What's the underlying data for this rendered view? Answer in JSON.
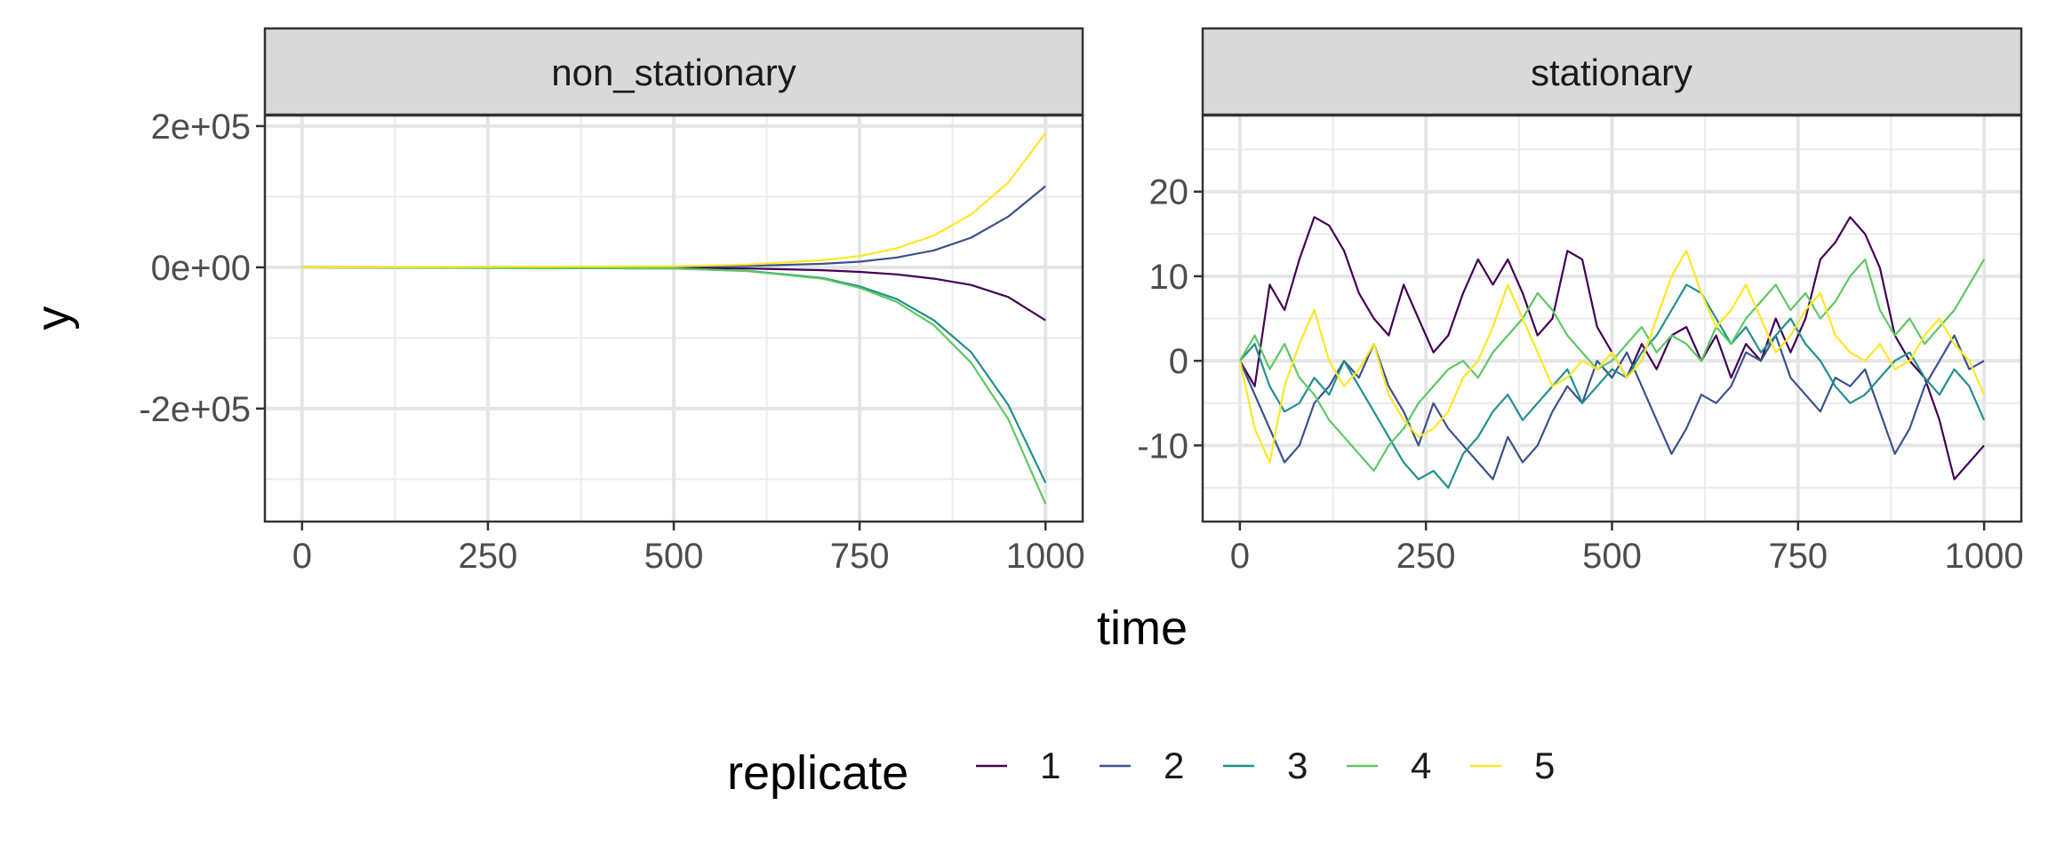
{
  "chart_data": {
    "type": "line",
    "xlabel": "time",
    "ylabel": "y",
    "legend": {
      "title": "replicate",
      "position": "bottom"
    },
    "series_meta": [
      {
        "name": "1",
        "color": "#440154"
      },
      {
        "name": "2",
        "color": "#3B528B"
      },
      {
        "name": "3",
        "color": "#21908C"
      },
      {
        "name": "4",
        "color": "#5DC863"
      },
      {
        "name": "5",
        "color": "#FDE725"
      }
    ],
    "panels": [
      {
        "title": "non_stationary",
        "xlim": [
          -50,
          1050
        ],
        "ylim": [
          -360000,
          215000
        ],
        "xticks": [
          0,
          250,
          500,
          750,
          1000
        ],
        "xtick_labels": [
          "0",
          "250",
          "500",
          "750",
          "1000"
        ],
        "yticks": [
          -200000,
          0,
          200000
        ],
        "ytick_labels": [
          "-2e+05",
          "0e+00",
          "2e+05"
        ],
        "y_minor": [
          -300000,
          -100000,
          100000
        ],
        "series": [
          {
            "name": "1",
            "x": [
              0,
              500,
              600,
              700,
              750,
              800,
              850,
              900,
              950,
              1000
            ],
            "y": [
              0,
              -500,
              -1500,
              -4000,
              -6500,
              -10000,
              -16000,
              -25000,
              -42000,
              -75000
            ]
          },
          {
            "name": "2",
            "x": [
              0,
              500,
              600,
              700,
              750,
              800,
              850,
              900,
              950,
              1000
            ],
            "y": [
              0,
              800,
              2000,
              5000,
              8000,
              14000,
              24000,
              42000,
              72000,
              115000
            ]
          },
          {
            "name": "3",
            "x": [
              0,
              500,
              600,
              700,
              750,
              800,
              850,
              900,
              950,
              1000
            ],
            "y": [
              0,
              -1500,
              -5000,
              -15000,
              -27000,
              -45000,
              -75000,
              -120000,
              -195000,
              -305000
            ]
          },
          {
            "name": "4",
            "x": [
              0,
              500,
              600,
              700,
              750,
              800,
              850,
              900,
              950,
              1000
            ],
            "y": [
              0,
              -1500,
              -5500,
              -16000,
              -29000,
              -49000,
              -82000,
              -135000,
              -215000,
              -335000
            ]
          },
          {
            "name": "5",
            "x": [
              0,
              500,
              600,
              700,
              750,
              800,
              850,
              900,
              950,
              1000
            ],
            "y": [
              0,
              1500,
              4000,
              10000,
              16000,
              27000,
              45000,
              75000,
              120000,
              190000
            ]
          }
        ]
      },
      {
        "title": "stationary",
        "xlim": [
          -50,
          1050
        ],
        "ylim": [
          -19,
          29
        ],
        "xticks": [
          0,
          250,
          500,
          750,
          1000
        ],
        "xtick_labels": [
          "0",
          "250",
          "500",
          "750",
          "1000"
        ],
        "yticks": [
          -10,
          0,
          10,
          20
        ],
        "ytick_labels": [
          "-10",
          "0",
          "10",
          "20"
        ],
        "y_minor": [
          -15,
          -5,
          5,
          15,
          25
        ],
        "series": [
          {
            "name": "1",
            "x": [
              0,
              20,
              40,
              60,
              80,
              100,
              120,
              140,
              160,
              180,
              200,
              220,
              240,
              260,
              280,
              300,
              320,
              340,
              360,
              380,
              400,
              420,
              440,
              460,
              480,
              500,
              520,
              540,
              560,
              580,
              600,
              620,
              640,
              660,
              680,
              700,
              720,
              740,
              760,
              780,
              800,
              820,
              840,
              860,
              880,
              900,
              920,
              940,
              960,
              980,
              1000
            ],
            "y": [
              0,
              -3,
              9,
              6,
              12,
              17,
              16,
              13,
              8,
              5,
              3,
              9,
              5,
              1,
              3,
              8,
              12,
              9,
              12,
              8,
              3,
              5,
              13,
              12,
              4,
              1,
              -2,
              2,
              -1,
              3,
              4,
              0,
              3,
              -2,
              2,
              0,
              5,
              1,
              5,
              12,
              14,
              17,
              15,
              11,
              3,
              0,
              -2,
              -7,
              -14,
              -12,
              -10
            ]
          },
          {
            "name": "2",
            "x": [
              0,
              20,
              40,
              60,
              80,
              100,
              120,
              140,
              160,
              180,
              200,
              220,
              240,
              260,
              280,
              300,
              320,
              340,
              360,
              380,
              400,
              420,
              440,
              460,
              480,
              500,
              520,
              540,
              560,
              580,
              600,
              620,
              640,
              660,
              680,
              700,
              720,
              740,
              760,
              780,
              800,
              820,
              840,
              860,
              880,
              900,
              920,
              940,
              960,
              980,
              1000
            ],
            "y": [
              0,
              -4,
              -8,
              -12,
              -10,
              -5,
              -3,
              0,
              -2,
              2,
              -3,
              -6,
              -10,
              -5,
              -8,
              -10,
              -12,
              -14,
              -9,
              -12,
              -10,
              -6,
              -3,
              -5,
              0,
              -2,
              1,
              -3,
              -7,
              -11,
              -8,
              -4,
              -5,
              -3,
              1,
              0,
              3,
              -2,
              -4,
              -6,
              -2,
              -3,
              -1,
              -6,
              -11,
              -8,
              -3,
              0,
              3,
              -1,
              0
            ]
          },
          {
            "name": "3",
            "x": [
              0,
              20,
              40,
              60,
              80,
              100,
              120,
              140,
              160,
              180,
              200,
              220,
              240,
              260,
              280,
              300,
              320,
              340,
              360,
              380,
              400,
              420,
              440,
              460,
              480,
              500,
              520,
              540,
              560,
              580,
              600,
              620,
              640,
              660,
              680,
              700,
              720,
              740,
              760,
              780,
              800,
              820,
              840,
              860,
              880,
              900,
              920,
              940,
              960,
              980,
              1000
            ],
            "y": [
              0,
              2,
              -3,
              -6,
              -5,
              -2,
              -4,
              0,
              -3,
              -6,
              -9,
              -12,
              -14,
              -13,
              -15,
              -11,
              -9,
              -6,
              -4,
              -7,
              -5,
              -3,
              -1,
              -5,
              -3,
              -1,
              -2,
              1,
              3,
              6,
              9,
              8,
              5,
              2,
              4,
              1,
              3,
              5,
              2,
              0,
              -3,
              -5,
              -4,
              -2,
              0,
              1,
              -2,
              -4,
              -1,
              -3,
              -7
            ]
          },
          {
            "name": "4",
            "x": [
              0,
              20,
              40,
              60,
              80,
              100,
              120,
              140,
              160,
              180,
              200,
              220,
              240,
              260,
              280,
              300,
              320,
              340,
              360,
              380,
              400,
              420,
              440,
              460,
              480,
              500,
              520,
              540,
              560,
              580,
              600,
              620,
              640,
              660,
              680,
              700,
              720,
              740,
              760,
              780,
              800,
              820,
              840,
              860,
              880,
              900,
              920,
              940,
              960,
              980,
              1000
            ],
            "y": [
              0,
              3,
              -1,
              2,
              -2,
              -4,
              -7,
              -9,
              -11,
              -13,
              -10,
              -8,
              -5,
              -3,
              -1,
              0,
              -2,
              1,
              3,
              5,
              8,
              6,
              3,
              1,
              -1,
              0,
              2,
              4,
              1,
              3,
              2,
              0,
              4,
              2,
              5,
              7,
              9,
              6,
              8,
              5,
              7,
              10,
              12,
              6,
              3,
              5,
              2,
              4,
              6,
              9,
              12
            ]
          },
          {
            "name": "5",
            "x": [
              0,
              20,
              40,
              60,
              80,
              100,
              120,
              140,
              160,
              180,
              200,
              220,
              240,
              260,
              280,
              300,
              320,
              340,
              360,
              380,
              400,
              420,
              440,
              460,
              480,
              500,
              520,
              540,
              560,
              580,
              600,
              620,
              640,
              660,
              680,
              700,
              720,
              740,
              760,
              780,
              800,
              820,
              840,
              860,
              880,
              900,
              920,
              940,
              960,
              980,
              1000
            ],
            "y": [
              0,
              -8,
              -12,
              -3,
              2,
              6,
              0,
              -3,
              -1,
              2,
              -4,
              -7,
              -9,
              -8,
              -6,
              -2,
              0,
              4,
              9,
              5,
              1,
              -3,
              -2,
              0,
              -1,
              1,
              -2,
              0,
              5,
              10,
              13,
              8,
              4,
              6,
              9,
              5,
              1,
              3,
              6,
              8,
              3,
              1,
              0,
              2,
              -1,
              0,
              3,
              5,
              2,
              0,
              -4
            ]
          }
        ]
      }
    ]
  }
}
